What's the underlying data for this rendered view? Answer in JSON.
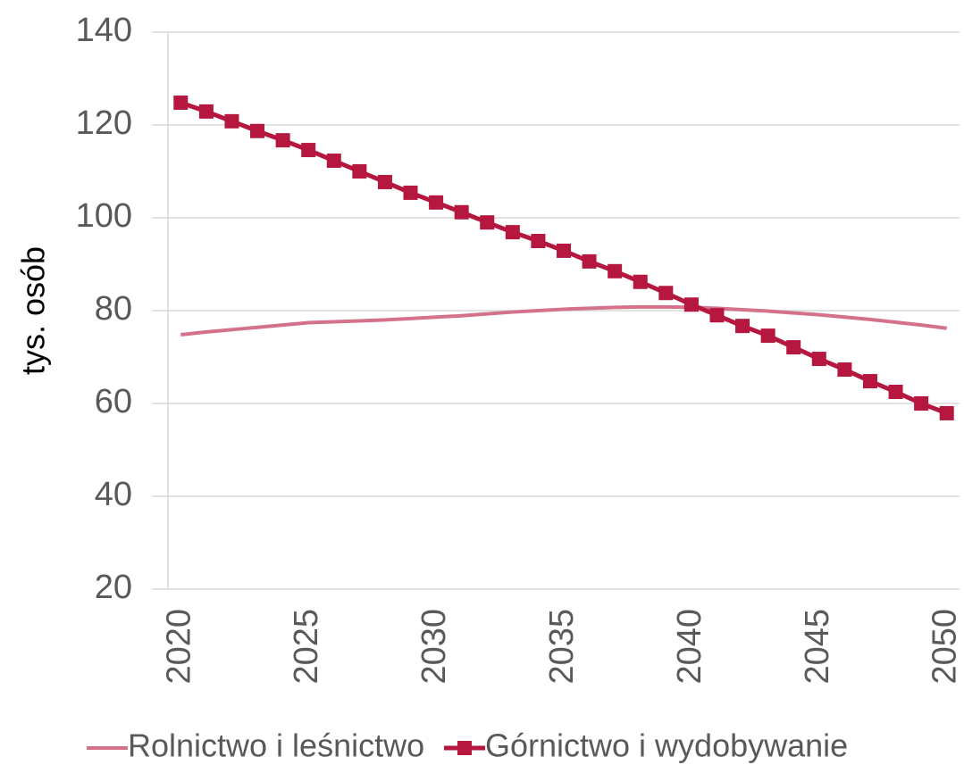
{
  "chart_data": {
    "type": "line",
    "y_label": "tys. osób",
    "x": [
      2020,
      2021,
      2022,
      2023,
      2024,
      2025,
      2026,
      2027,
      2028,
      2029,
      2030,
      2031,
      2032,
      2033,
      2034,
      2035,
      2036,
      2037,
      2038,
      2039,
      2040,
      2041,
      2042,
      2043,
      2044,
      2045,
      2046,
      2047,
      2048,
      2049,
      2050
    ],
    "xlim": [
      2019.5,
      2050.5
    ],
    "xticks": [
      2020,
      2025,
      2030,
      2035,
      2040,
      2045,
      2050
    ],
    "ylim": [
      20,
      140
    ],
    "yticks": [
      20,
      40,
      60,
      80,
      100,
      120,
      140
    ],
    "grid": true,
    "legend": "bottom",
    "series": [
      {
        "name": "Rolnictwo i leśnictwo",
        "color": "#d4728b",
        "marker": "none",
        "values": [
          74.8,
          75.4,
          75.9,
          76.4,
          76.9,
          77.4,
          77.6,
          77.8,
          78.0,
          78.3,
          78.6,
          78.9,
          79.3,
          79.7,
          80.0,
          80.3,
          80.5,
          80.7,
          80.8,
          80.8,
          80.7,
          80.5,
          80.2,
          79.9,
          79.5,
          79.1,
          78.6,
          78.1,
          77.5,
          76.9,
          76.2
        ]
      },
      {
        "name": "Górnictwo i wydobywanie",
        "color": "#b5173f",
        "marker": "square",
        "values": [
          124.8,
          122.9,
          120.8,
          118.7,
          116.7,
          114.6,
          112.3,
          110.0,
          107.7,
          105.4,
          103.3,
          101.2,
          99.0,
          96.9,
          95.0,
          92.9,
          90.6,
          88.5,
          86.2,
          83.8,
          81.3,
          79.0,
          76.7,
          74.6,
          72.1,
          69.6,
          67.3,
          64.8,
          62.5,
          60.0,
          57.9
        ]
      }
    ]
  }
}
